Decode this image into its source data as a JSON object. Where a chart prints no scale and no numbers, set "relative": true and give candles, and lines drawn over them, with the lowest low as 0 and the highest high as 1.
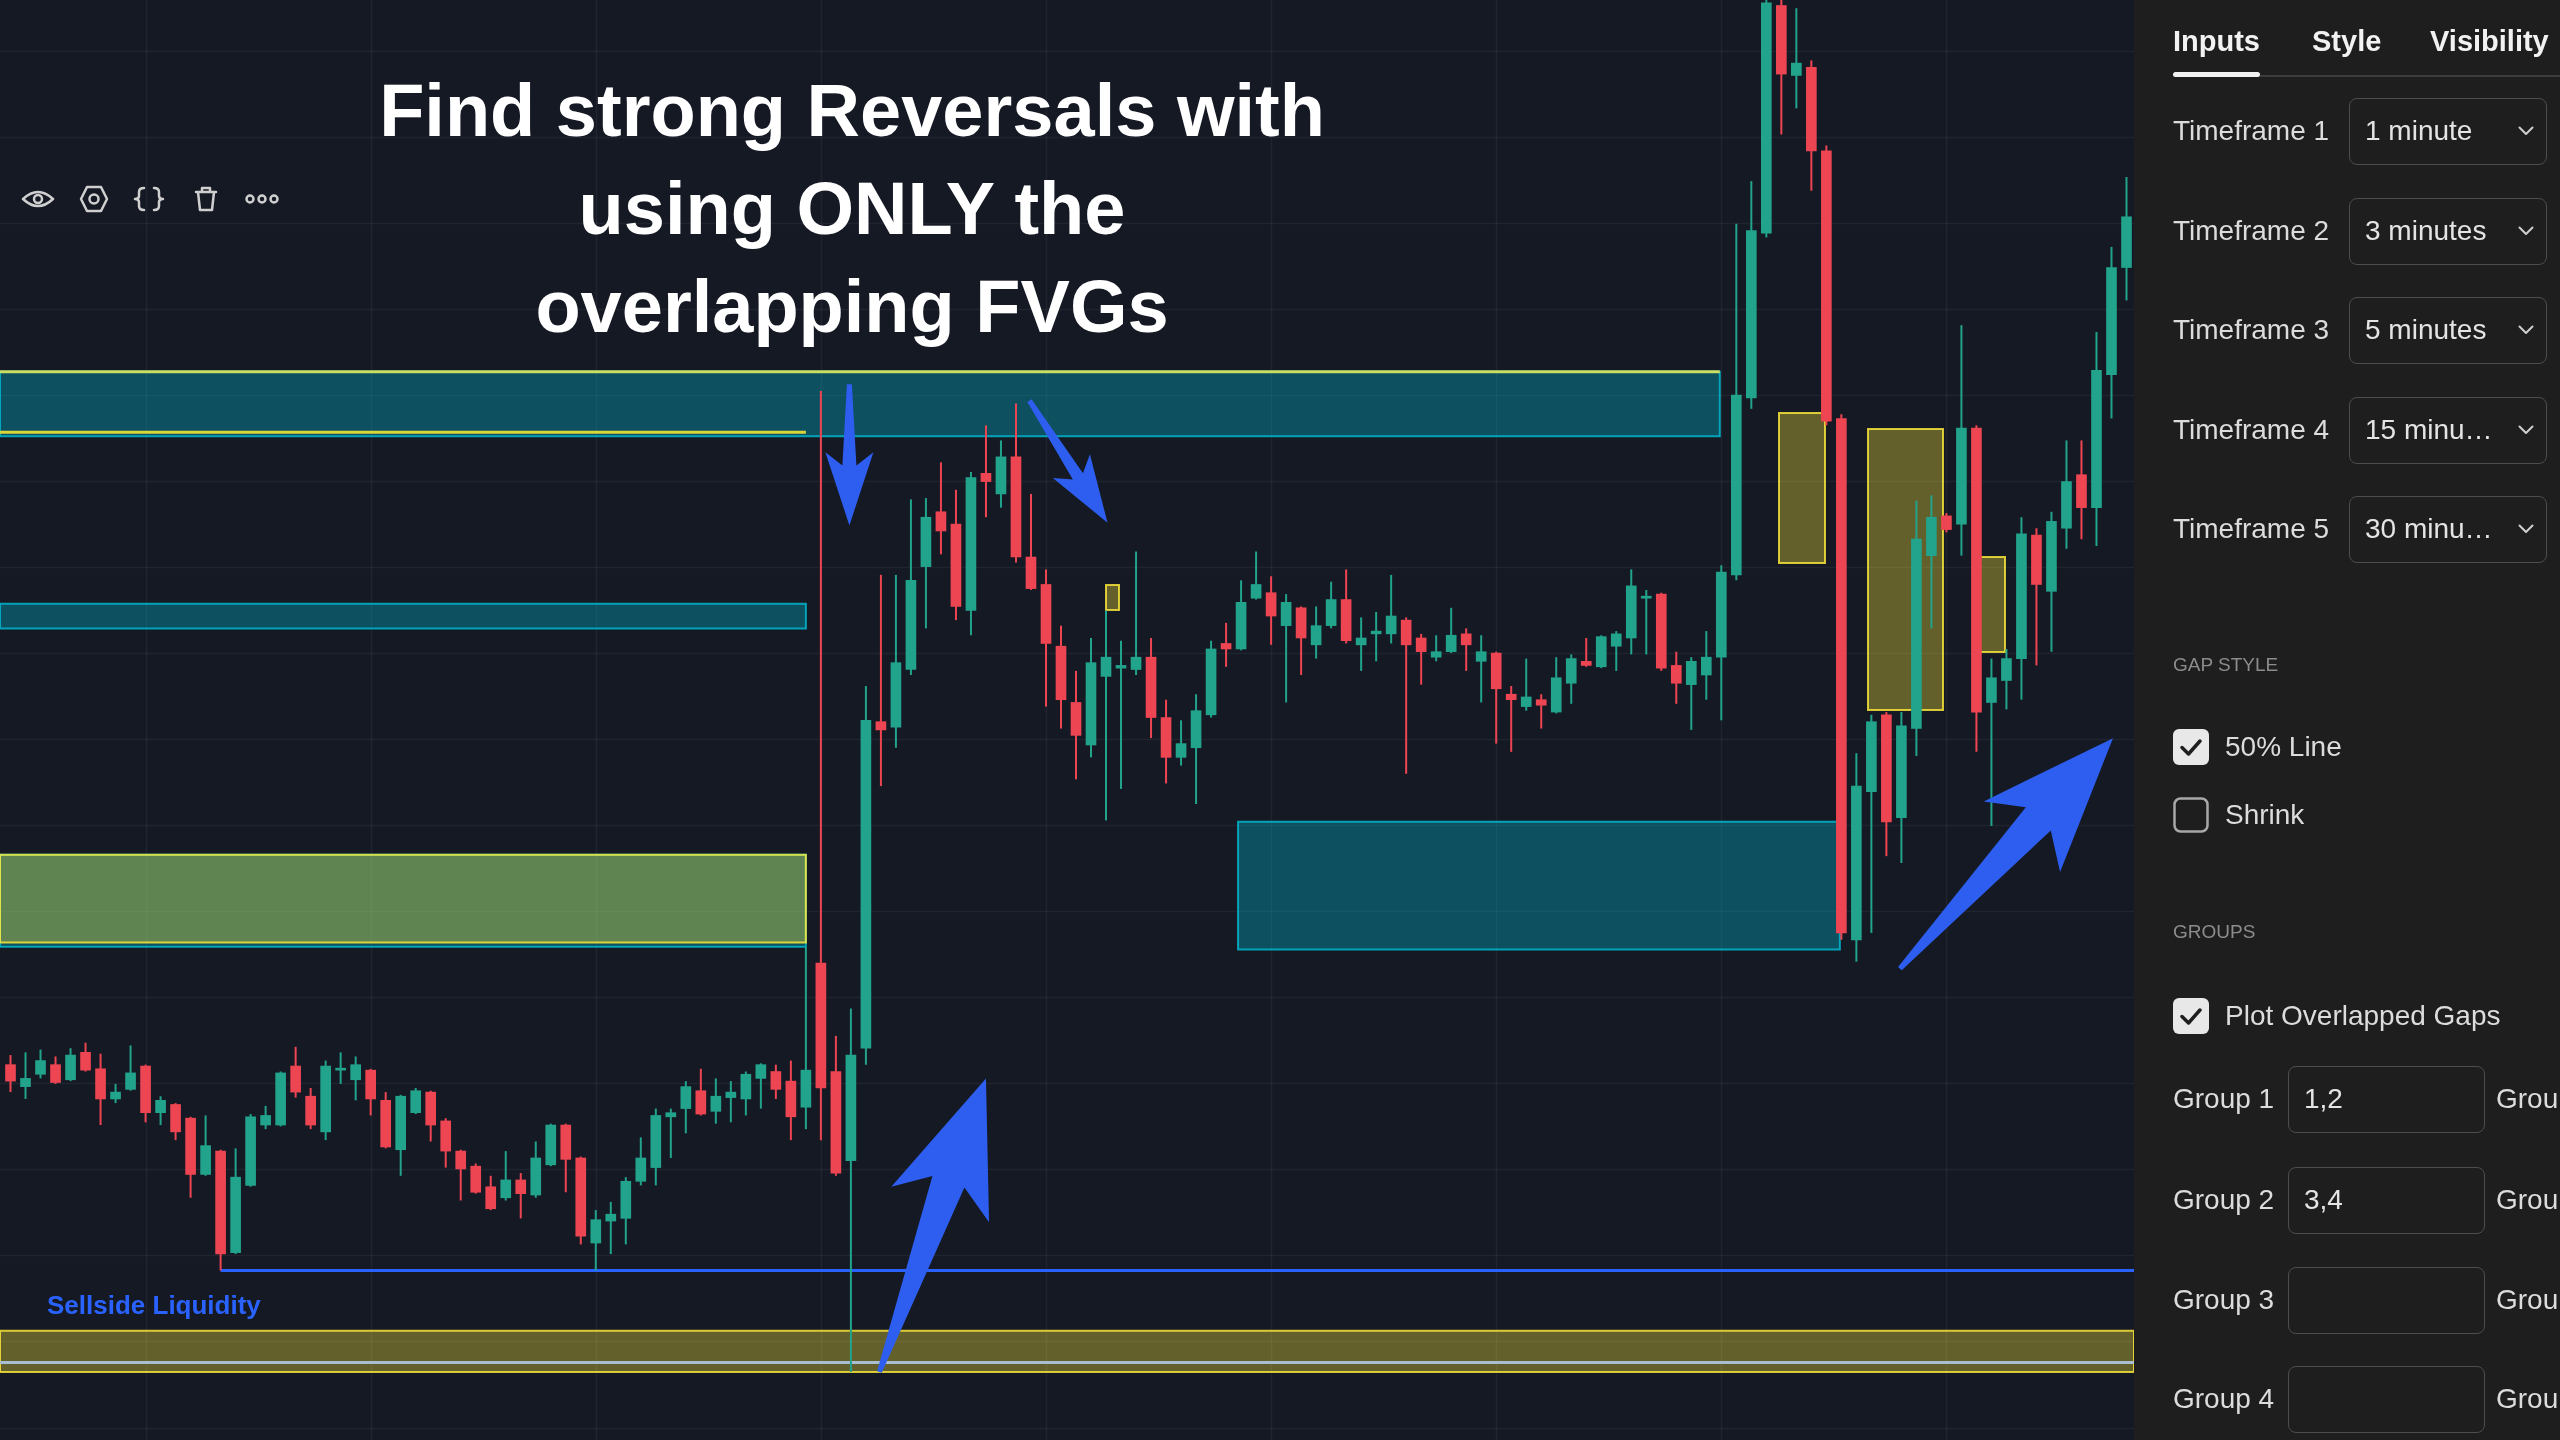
{
  "chart_data": [
    {
      "type": "candlestick",
      "title": "Find strong Reversals with using ONLY the overlapping FVGs",
      "relative": true,
      "grid": true,
      "categories": [
        null,
        null,
        null,
        null,
        null,
        null,
        null,
        null,
        null,
        null,
        null,
        null,
        null,
        null,
        null,
        null,
        null,
        null,
        null,
        null,
        null,
        null,
        null,
        null,
        null,
        null,
        null,
        null,
        null,
        null,
        null,
        null,
        null,
        null,
        null,
        null,
        null,
        null,
        null,
        null,
        null,
        null,
        null,
        null,
        null,
        null,
        null,
        null,
        null,
        null,
        null,
        null,
        null,
        null,
        null,
        null,
        null,
        null,
        null,
        null,
        null,
        null,
        null,
        null,
        null,
        null,
        null,
        null,
        null,
        null,
        null,
        null,
        null,
        null,
        null,
        null,
        null,
        null,
        null,
        null,
        null,
        null,
        null,
        null,
        null,
        null,
        null,
        null,
        null,
        null,
        null,
        null,
        null,
        null,
        null,
        null,
        null,
        null,
        null,
        null,
        null,
        null,
        null,
        null,
        null,
        null,
        null,
        null,
        null,
        null,
        null,
        null,
        null,
        null,
        null,
        null,
        null,
        null,
        null,
        null,
        null,
        null,
        null,
        null,
        null,
        null,
        null,
        null,
        null,
        null,
        null,
        null,
        null,
        null,
        null,
        null,
        null,
        null,
        null,
        null,
        null,
        null
      ],
      "ohlc": [
        [
          0.224,
          0.231,
          0.204,
          0.212
        ],
        [
          0.208,
          0.233,
          0.199,
          0.214
        ],
        [
          0.217,
          0.235,
          0.214,
          0.227
        ],
        [
          0.224,
          0.23,
          0.21,
          0.211
        ],
        [
          0.213,
          0.236,
          0.212,
          0.231
        ],
        [
          0.233,
          0.24,
          0.219,
          0.22
        ],
        [
          0.221,
          0.232,
          0.18,
          0.199
        ],
        [
          0.199,
          0.21,
          0.196,
          0.204
        ],
        [
          0.206,
          0.238,
          0.205,
          0.218
        ],
        [
          0.223,
          0.224,
          0.182,
          0.189
        ],
        [
          0.189,
          0.201,
          0.18,
          0.198
        ],
        [
          0.195,
          0.196,
          0.169,
          0.175
        ],
        [
          0.185,
          0.186,
          0.127,
          0.144
        ],
        [
          0.144,
          0.187,
          0.143,
          0.165
        ],
        [
          0.161,
          0.162,
          0.074,
          0.086
        ],
        [
          0.087,
          0.163,
          0.086,
          0.142
        ],
        [
          0.136,
          0.188,
          0.135,
          0.186
        ],
        [
          0.18,
          0.194,
          0.177,
          0.187
        ],
        [
          0.18,
          0.219,
          0.179,
          0.218
        ],
        [
          0.223,
          0.237,
          0.2,
          0.204
        ],
        [
          0.201,
          0.207,
          0.177,
          0.18
        ],
        [
          0.175,
          0.227,
          0.169,
          0.223
        ],
        [
          0.22,
          0.233,
          0.21,
          0.221
        ],
        [
          0.213,
          0.23,
          0.198,
          0.224
        ],
        [
          0.22,
          0.221,
          0.187,
          0.199
        ],
        [
          0.198,
          0.204,
          0.163,
          0.164
        ],
        [
          0.162,
          0.202,
          0.143,
          0.201
        ],
        [
          0.189,
          0.207,
          0.188,
          0.205
        ],
        [
          0.204,
          0.205,
          0.168,
          0.18
        ],
        [
          0.183,
          0.185,
          0.149,
          0.161
        ],
        [
          0.161,
          0.162,
          0.125,
          0.148
        ],
        [
          0.15,
          0.152,
          0.13,
          0.131
        ],
        [
          0.135,
          0.143,
          0.118,
          0.119
        ],
        [
          0.127,
          0.161,
          0.125,
          0.14
        ],
        [
          0.14,
          0.145,
          0.112,
          0.13
        ],
        [
          0.129,
          0.168,
          0.127,
          0.156
        ],
        [
          0.151,
          0.181,
          0.15,
          0.18
        ],
        [
          0.18,
          0.181,
          0.131,
          0.155
        ],
        [
          0.156,
          0.157,
          0.093,
          0.099
        ],
        [
          0.094,
          0.118,
          0.074,
          0.111
        ],
        [
          0.11,
          0.124,
          0.086,
          0.115
        ],
        [
          0.112,
          0.142,
          0.093,
          0.139
        ],
        [
          0.139,
          0.171,
          0.136,
          0.156
        ],
        [
          0.149,
          0.192,
          0.136,
          0.187
        ],
        [
          0.186,
          0.192,
          0.156,
          0.189
        ],
        [
          0.192,
          0.212,
          0.174,
          0.208
        ],
        [
          0.205,
          0.221,
          0.187,
          0.188
        ],
        [
          0.19,
          0.214,
          0.181,
          0.201
        ],
        [
          0.2,
          0.212,
          0.182,
          0.204
        ],
        [
          0.199,
          0.219,
          0.187,
          0.217
        ],
        [
          0.214,
          0.225,
          0.192,
          0.224
        ],
        [
          0.219,
          0.224,
          0.199,
          0.206
        ],
        [
          0.212,
          0.227,
          0.169,
          0.186
        ],
        [
          0.193,
          0.31,
          0.177,
          0.22
        ],
        [
          0.298,
          0.715,
          0.169,
          0.207
        ],
        [
          0.219,
          0.245,
          0.143,
          0.145
        ],
        [
          0.154,
          0.265,
          0,
          0.231
        ],
        [
          0.236,
          0.5,
          0.224,
          0.475
        ],
        [
          0.474,
          0.581,
          0.427,
          0.468
        ],
        [
          0.47,
          0.581,
          0.455,
          0.517
        ],
        [
          0.512,
          0.636,
          0.508,
          0.577
        ],
        [
          0.587,
          0.637,
          0.542,
          0.623
        ],
        [
          0.627,
          0.663,
          0.596,
          0.613
        ],
        [
          0.618,
          0.643,
          0.548,
          0.558
        ],
        [
          0.555,
          0.656,
          0.537,
          0.652
        ],
        [
          0.655,
          0.69,
          0.623,
          0.649
        ],
        [
          0.64,
          0.679,
          0.63,
          0.667
        ],
        [
          0.667,
          0.706,
          0.59,
          0.594
        ],
        [
          0.594,
          0.64,
          0.57,
          0.571
        ],
        [
          0.574,
          0.585,
          0.485,
          0.531
        ],
        [
          0.529,
          0.544,
          0.469,
          0.49
        ],
        [
          0.488,
          0.511,
          0.432,
          0.464
        ],
        [
          0.457,
          0.535,
          0.448,
          0.517
        ],
        [
          0.507,
          0.555,
          0.402,
          0.521
        ],
        [
          0.513,
          0.533,
          0.425,
          0.515
        ],
        [
          0.512,
          0.598,
          0.508,
          0.521
        ],
        [
          0.521,
          0.535,
          0.462,
          0.477
        ],
        [
          0.477,
          0.49,
          0.429,
          0.448
        ],
        [
          0.448,
          0.475,
          0.442,
          0.458
        ],
        [
          0.455,
          0.494,
          0.414,
          0.482
        ],
        [
          0.479,
          0.533,
          0.477,
          0.527
        ],
        [
          0.531,
          0.546,
          0.514,
          0.527
        ],
        [
          0.527,
          0.577,
          0.526,
          0.561
        ],
        [
          0.564,
          0.598,
          0.563,
          0.574
        ],
        [
          0.568,
          0.58,
          0.53,
          0.551
        ],
        [
          0.544,
          0.567,
          0.488,
          0.561
        ],
        [
          0.557,
          0.558,
          0.508,
          0.535
        ],
        [
          0.53,
          0.558,
          0.52,
          0.544
        ],
        [
          0.544,
          0.576,
          0.542,
          0.563
        ],
        [
          0.563,
          0.585,
          0.531,
          0.533
        ],
        [
          0.53,
          0.55,
          0.511,
          0.535
        ],
        [
          0.538,
          0.554,
          0.518,
          0.54
        ],
        [
          0.538,
          0.581,
          0.531,
          0.551
        ],
        [
          0.548,
          0.55,
          0.436,
          0.53
        ],
        [
          0.535,
          0.538,
          0.501,
          0.525
        ],
        [
          0.521,
          0.537,
          0.518,
          0.525
        ],
        [
          0.525,
          0.557,
          0.524,
          0.537
        ],
        [
          0.538,
          0.542,
          0.511,
          0.53
        ],
        [
          0.518,
          0.537,
          0.488,
          0.525
        ],
        [
          0.524,
          0.525,
          0.458,
          0.498
        ],
        [
          0.494,
          0.5,
          0.452,
          0.49
        ],
        [
          0.485,
          0.52,
          0.482,
          0.492
        ],
        [
          0.49,
          0.494,
          0.469,
          0.486
        ],
        [
          0.481,
          0.521,
          0.48,
          0.506
        ],
        [
          0.502,
          0.523,
          0.487,
          0.52
        ],
        [
          0.518,
          0.535,
          0.514,
          0.515
        ],
        [
          0.514,
          0.537,
          0.513,
          0.536
        ],
        [
          0.529,
          0.54,
          0.511,
          0.538
        ],
        [
          0.535,
          0.585,
          0.523,
          0.573
        ],
        [
          0.564,
          0.57,
          0.523,
          0.565
        ],
        [
          0.567,
          0.568,
          0.511,
          0.513
        ],
        [
          0.515,
          0.525,
          0.487,
          0.502
        ],
        [
          0.501,
          0.521,
          0.468,
          0.518
        ],
        [
          0.508,
          0.54,
          0.49,
          0.521
        ],
        [
          0.521,
          0.588,
          0.475,
          0.583
        ],
        [
          0.581,
          0.837,
          0.577,
          0.712
        ],
        [
          0.71,
          0.868,
          0.702,
          0.832
        ],
        [
          0.83,
          1,
          0.827,
          0.998
        ],
        [
          0.996,
          1,
          0.902,
          0.946
        ],
        [
          0.945,
          0.994,
          0.921,
          0.954
        ],
        [
          0.951,
          0.956,
          0.861,
          0.89
        ],
        [
          0.89,
          0.894,
          0.69,
          0.693
        ],
        [
          0.695,
          0.698,
          0.315,
          0.32
        ],
        [
          0.315,
          0.451,
          0.299,
          0.427
        ],
        [
          0.423,
          0.479,
          0.32,
          0.474
        ],
        [
          0.479,
          0.481,
          0.376,
          0.401
        ],
        [
          0.404,
          0.481,
          0.371,
          0.471
        ],
        [
          0.469,
          0.635,
          0.449,
          0.607
        ],
        [
          0.595,
          0.639,
          0.542,
          0.623
        ],
        [
          0.624,
          0.626,
          0.612,
          0.614
        ],
        [
          0.618,
          0.763,
          0.595,
          0.688
        ],
        [
          0.688,
          0.69,
          0.452,
          0.481
        ],
        [
          0.488,
          0.52,
          0.398,
          0.506
        ],
        [
          0.504,
          0.527,
          0.483,
          0.52
        ],
        [
          0.52,
          0.623,
          0.49,
          0.611
        ],
        [
          0.61,
          0.615,
          0.515,
          0.574
        ],
        [
          0.569,
          0.627,
          0.525,
          0.62
        ],
        [
          0.615,
          0.679,
          0.6,
          0.649
        ],
        [
          0.654,
          0.679,
          0.607,
          0.63
        ],
        [
          0.63,
          0.758,
          0.602,
          0.73
        ],
        [
          0.727,
          0.82,
          0.695,
          0.805
        ],
        [
          0.805,
          0.871,
          0.781,
          0.842
        ]
      ],
      "colors": [
        "#ee4552",
        "#22a38c",
        "#22a38c",
        "#ee4552",
        "#22a38c",
        "#ee4552",
        "#ee4552",
        "#22a38c",
        "#22a38c",
        "#ee4552",
        "#22a38c",
        "#ee4552",
        "#ee4552",
        "#22a38c",
        "#ee4552",
        "#22a38c",
        "#22a38c",
        "#22a38c",
        "#22a38c",
        "#ee4552",
        "#ee4552",
        "#22a38c",
        "#22a38c",
        "#22a38c",
        "#ee4552",
        "#ee4552",
        "#22a38c",
        "#22a38c",
        "#ee4552",
        "#ee4552",
        "#ee4552",
        "#ee4552",
        "#ee4552",
        "#22a38c",
        "#ee4552",
        "#22a38c",
        "#22a38c",
        "#ee4552",
        "#ee4552",
        "#22a38c",
        "#22a38c",
        "#22a38c",
        "#22a38c",
        "#22a38c",
        "#22a38c",
        "#22a38c",
        "#ee4552",
        "#22a38c",
        "#22a38c",
        "#22a38c",
        "#22a38c",
        "#ee4552",
        "#ee4552",
        "#22a38c",
        "#ee4552",
        "#ee4552",
        "#22a38c",
        "#22a38c",
        "#ee4552",
        "#22a38c",
        "#22a38c",
        "#22a38c",
        "#ee4552",
        "#ee4552",
        "#22a38c",
        "#ee4552",
        "#22a38c",
        "#ee4552",
        "#ee4552",
        "#ee4552",
        "#ee4552",
        "#ee4552",
        "#22a38c",
        "#22a38c",
        "#22a38c",
        "#22a38c",
        "#ee4552",
        "#ee4552",
        "#22a38c",
        "#22a38c",
        "#22a38c",
        "#ee4552",
        "#22a38c",
        "#22a38c",
        "#ee4552",
        "#22a38c",
        "#ee4552",
        "#22a38c",
        "#22a38c",
        "#ee4552",
        "#22a38c",
        "#22a38c",
        "#22a38c",
        "#ee4552",
        "#ee4552",
        "#22a38c",
        "#22a38c",
        "#ee4552",
        "#22a38c",
        "#ee4552",
        "#ee4552",
        "#22a38c",
        "#ee4552",
        "#22a38c",
        "#22a38c",
        "#ee4552",
        "#22a38c",
        "#22a38c",
        "#22a38c",
        "#22a38c",
        "#ee4552",
        "#ee4552",
        "#22a38c",
        "#22a38c",
        "#22a38c",
        "#22a38c",
        "#22a38c",
        "#22a38c",
        "#ee4552",
        "#22a38c",
        "#ee4552",
        "#ee4552",
        "#ee4552",
        "#22a38c",
        "#22a38c",
        "#ee4552",
        "#22a38c",
        "#22a38c",
        "#22a38c",
        "#ee4552",
        "#22a38c",
        "#ee4552",
        "#22a38c",
        "#22a38c",
        "#22a38c",
        "#ee4552",
        "#22a38c",
        "#22a38c",
        "#ee4552",
        "#22a38c",
        "#22a38c",
        "#22a38c"
      ],
      "bands": [
        {
          "axis": "y",
          "from": 0.682,
          "to": 0.729,
          "color": "#00bcd4"
        },
        {
          "axis": "y",
          "from": 0.542,
          "to": 0.56,
          "color": "#00bcd4"
        },
        {
          "axis": "y",
          "from": 0.31,
          "to": 0.377,
          "color": "#00bcd4"
        },
        {
          "axis": "y",
          "from": 0.313,
          "to": 0.377,
          "color": "#ffeb3b"
        },
        {
          "axis": "y",
          "from": 0.308,
          "to": 0.401,
          "color": "#00bcd4"
        },
        {
          "axis": "y",
          "from": 0,
          "to": 0.03,
          "color": "#ffeb3b"
        }
      ],
      "ref_lines": [
        {
          "axis": "y",
          "value": 0.074,
          "label": "Sellside Liquidity",
          "color": "#2962ff"
        },
        {
          "axis": "y",
          "value": 0.729,
          "color": "#c8de64"
        },
        {
          "axis": "y",
          "value": 0.685,
          "color": "#d9d63a"
        },
        {
          "axis": "y",
          "value": 0.007,
          "color": "#aabed2"
        }
      ]
    },
    {
      "type": "other",
      "annotations": [
        "Inputs",
        "Style",
        "Visibility",
        "Timeframe 1",
        "1 minute",
        "Timeframe 2",
        "3 minutes",
        "Timeframe 3",
        "5 minutes",
        "Timeframe 4",
        "15 minu…",
        "Timeframe 5",
        "30 minu…",
        "GAP STYLE",
        "50% Line",
        "Shrink",
        "GROUPS",
        "Plot Overlapped Gaps",
        "Group 1",
        "1,2",
        "Grou",
        "Group 2",
        "3,4",
        "Grou",
        "Group 3",
        "Grou",
        "Group 4",
        "Grou"
      ]
    }
  ]
}
